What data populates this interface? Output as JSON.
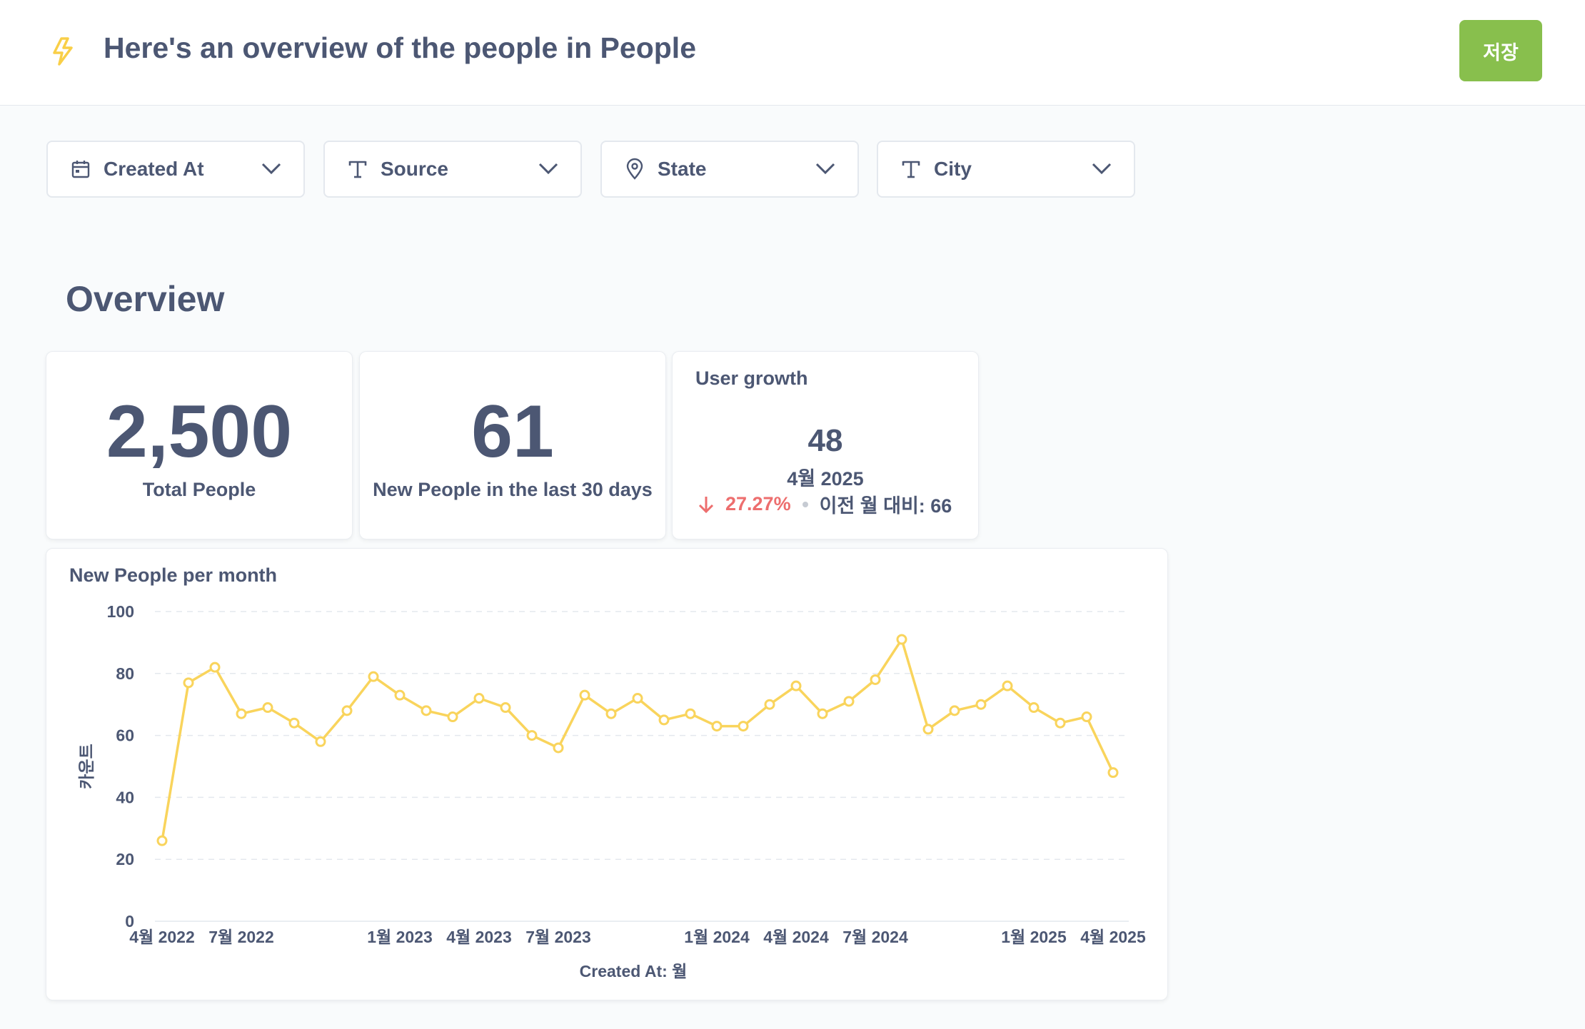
{
  "header": {
    "title": "Here's an overview of the people in People",
    "save_label": "저장",
    "icon": "bolt-icon",
    "icon_color": "#f9cf48"
  },
  "filters": [
    {
      "label": "Created At",
      "icon": "calendar-icon"
    },
    {
      "label": "Source",
      "icon": "text-icon"
    },
    {
      "label": "State",
      "icon": "location-pin-icon"
    },
    {
      "label": "City",
      "icon": "text-icon"
    }
  ],
  "overview": {
    "title": "Overview",
    "total": {
      "value": "2,500",
      "label": "Total People"
    },
    "new30": {
      "value": "61",
      "label": "New People in the last 30 days"
    },
    "growth": {
      "title": "User growth",
      "value": "48",
      "period": "4월 2025",
      "change": "27.27%",
      "previous": "이전 월 대비: 66",
      "change_color": "#ed6e6e"
    }
  },
  "chart_data": {
    "type": "line",
    "title": "New People per month",
    "xlabel": "Created At: 월",
    "ylabel": "카운트",
    "ylim": [
      0,
      100
    ],
    "yticks": [
      "0",
      "20",
      "40",
      "60",
      "80",
      "100"
    ],
    "grid": true,
    "color": "#f9d45c",
    "x_tick_labels": [
      {
        "index": 0,
        "label": "4월 2022"
      },
      {
        "index": 3,
        "label": "7월 2022"
      },
      {
        "index": 9,
        "label": "1월 2023"
      },
      {
        "index": 12,
        "label": "4월 2023"
      },
      {
        "index": 15,
        "label": "7월 2023"
      },
      {
        "index": 21,
        "label": "1월 2024"
      },
      {
        "index": 24,
        "label": "4월 2024"
      },
      {
        "index": 27,
        "label": "7월 2024"
      },
      {
        "index": 33,
        "label": "1월 2025"
      },
      {
        "index": 36,
        "label": "4월 2025"
      }
    ],
    "values": [
      26,
      77,
      82,
      67,
      69,
      64,
      58,
      68,
      79,
      73,
      68,
      66,
      72,
      69,
      60,
      56,
      73,
      67,
      72,
      65,
      67,
      63,
      63,
      70,
      76,
      67,
      71,
      78,
      91,
      62,
      68,
      70,
      76,
      69,
      64,
      66,
      48
    ]
  }
}
